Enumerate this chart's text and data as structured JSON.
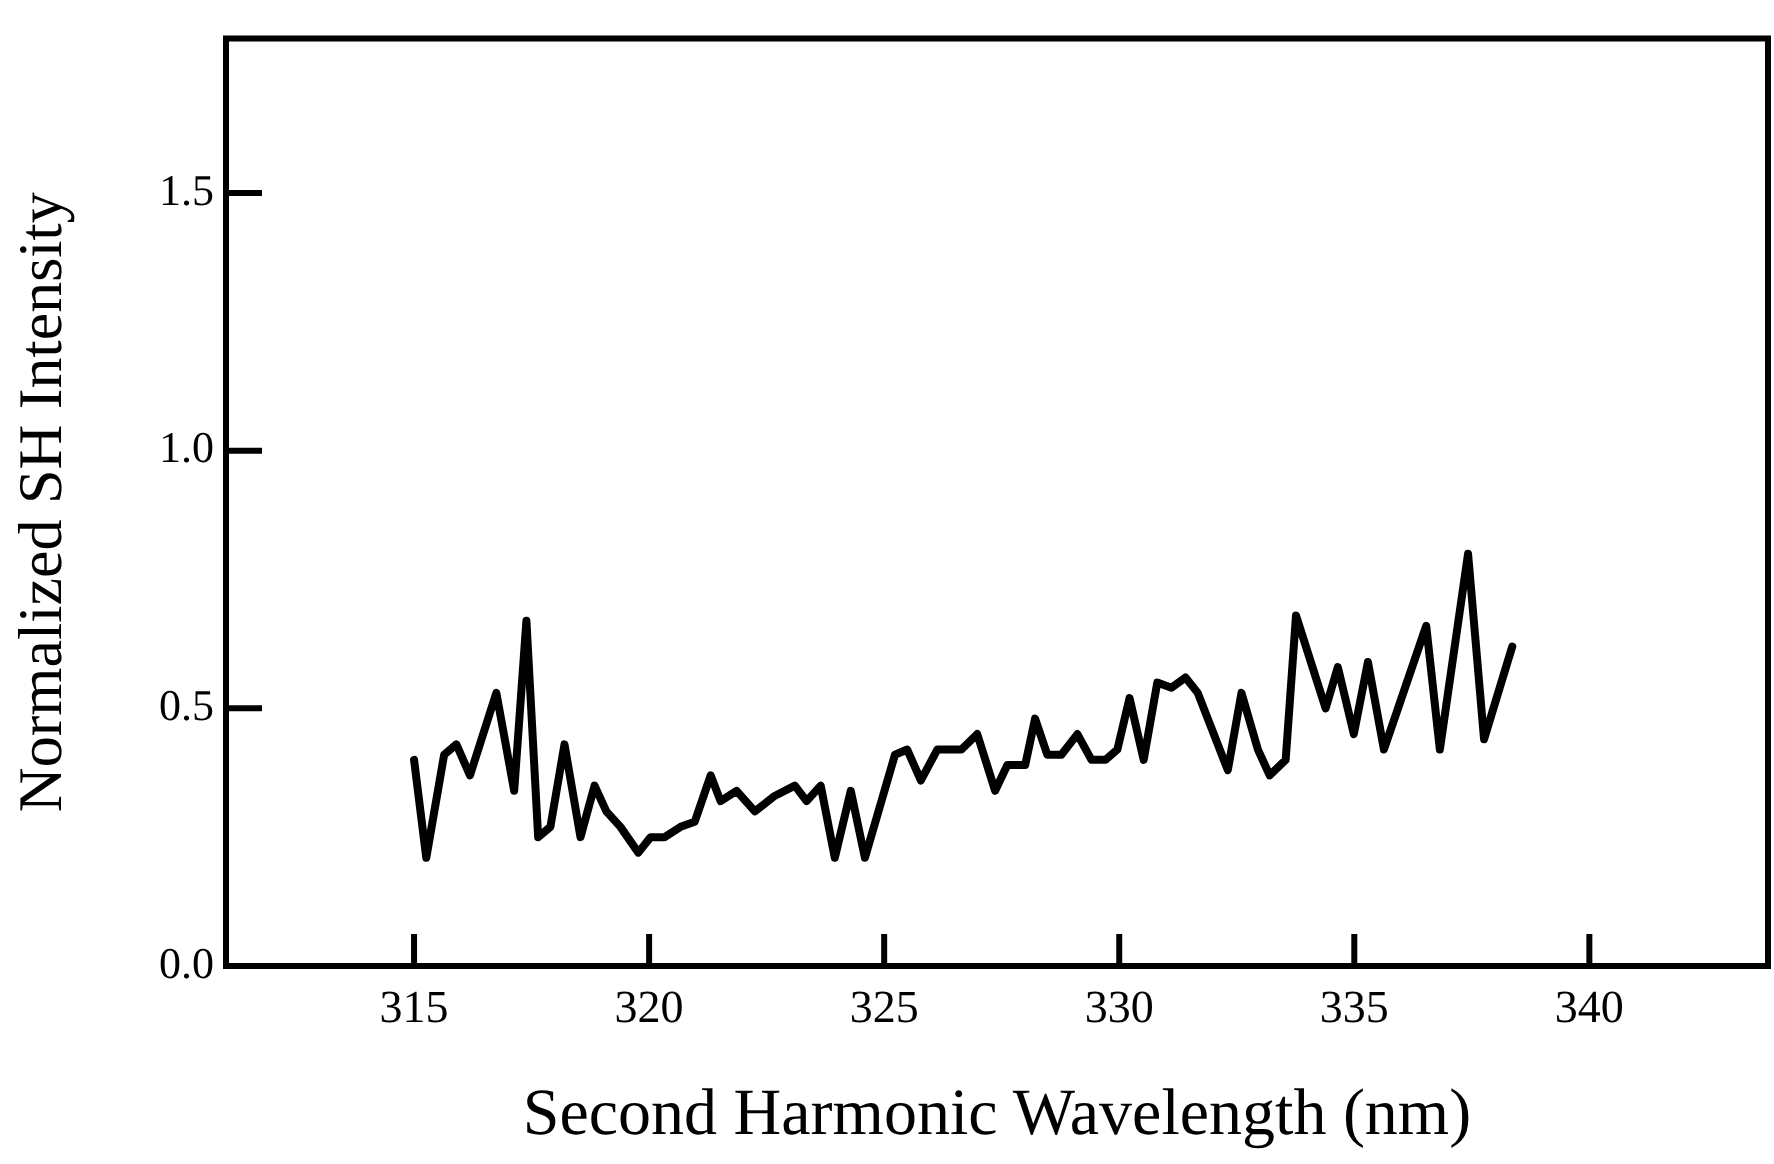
{
  "chart_data": {
    "type": "line",
    "xlabel": "Second Harmonic Wavelength (nm)",
    "ylabel": "Normalized SH Intensity",
    "xlim": [
      311,
      343.8
    ],
    "xticks": [
      315,
      320,
      325,
      330,
      335,
      340
    ],
    "ylim": [
      0,
      1.8
    ],
    "yticks": [
      {
        "value": 0,
        "label": "0.0"
      },
      {
        "value": 0.5,
        "label": "0.5"
      },
      {
        "value": 1,
        "label": "1.0"
      },
      {
        "value": 1.5,
        "label": "1.5"
      }
    ],
    "grid": false,
    "legend": false,
    "marker": "none",
    "line_style": "solid",
    "series": [
      {
        "color": "#000000",
        "x": [
          315.0,
          315.26,
          315.64,
          315.9,
          316.19,
          316.75,
          317.13,
          317.39,
          317.64,
          317.9,
          318.2,
          318.54,
          318.84,
          319.09,
          319.39,
          319.77,
          320.03,
          320.33,
          320.67,
          320.97,
          321.31,
          321.52,
          321.86,
          322.25,
          322.67,
          323.1,
          323.35,
          323.65,
          323.95,
          324.29,
          324.59,
          325.23,
          325.49,
          325.78,
          326.13,
          326.64,
          326.98,
          327.36,
          327.62,
          328.0,
          328.21,
          328.47,
          328.77,
          329.11,
          329.41,
          329.71,
          329.96,
          330.22,
          330.52,
          330.81,
          331.11,
          331.41,
          331.67,
          332.31,
          332.6,
          332.95,
          333.2,
          333.54,
          333.76,
          334.39,
          334.65,
          334.99,
          335.29,
          335.63,
          335.93,
          336.53,
          336.82,
          337.42,
          337.76,
          338.36
        ],
        "values": [
          0.4,
          0.21,
          0.41,
          0.43,
          0.37,
          0.53,
          0.34,
          0.67,
          0.25,
          0.27,
          0.43,
          0.25,
          0.35,
          0.3,
          0.27,
          0.22,
          0.25,
          0.25,
          0.27,
          0.28,
          0.37,
          0.32,
          0.34,
          0.3,
          0.33,
          0.35,
          0.32,
          0.35,
          0.21,
          0.34,
          0.21,
          0.41,
          0.42,
          0.36,
          0.42,
          0.42,
          0.45,
          0.34,
          0.39,
          0.39,
          0.48,
          0.41,
          0.41,
          0.45,
          0.4,
          0.4,
          0.42,
          0.52,
          0.4,
          0.55,
          0.54,
          0.56,
          0.53,
          0.38,
          0.53,
          0.42,
          0.37,
          0.4,
          0.68,
          0.5,
          0.58,
          0.45,
          0.59,
          0.42,
          0.5,
          0.66,
          0.42,
          0.8,
          0.44,
          0.62
        ]
      }
    ]
  }
}
